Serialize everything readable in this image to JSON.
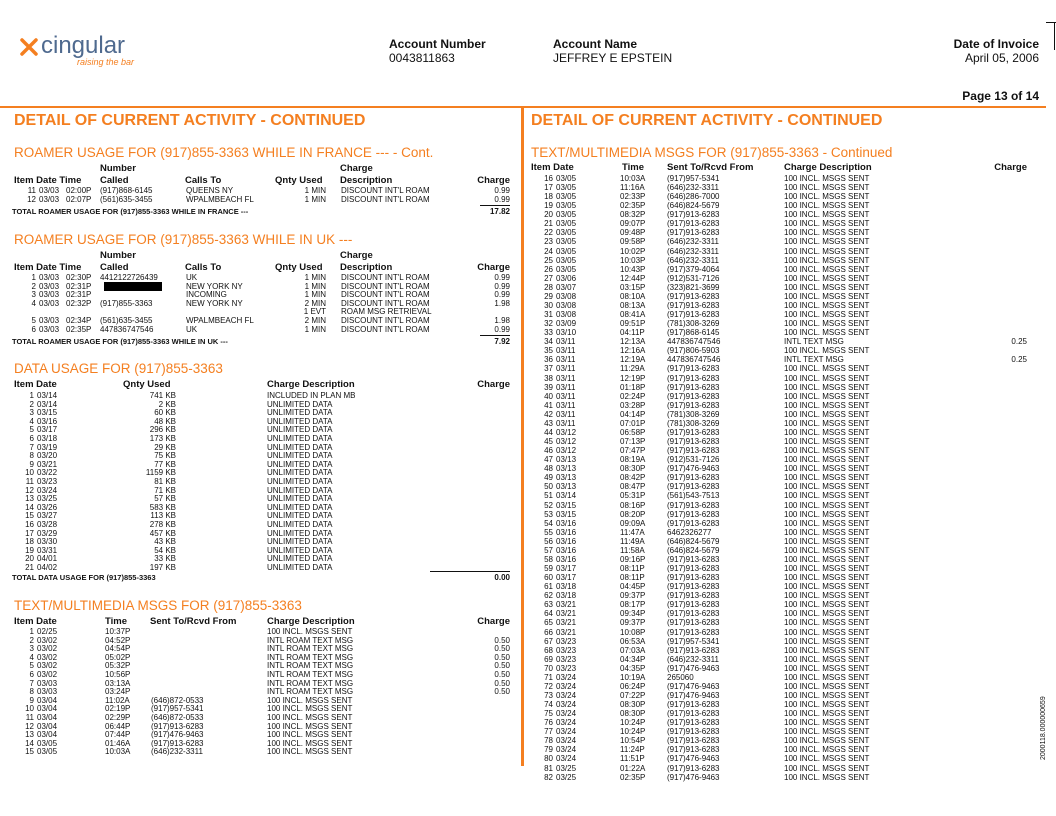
{
  "header": {
    "logo": "cingular",
    "tagline": "raising the bar",
    "account_number_label": "Account Number",
    "account_number": "0043811863",
    "account_name_label": "Account Name",
    "account_name": "JEFFREY E EPSTEIN",
    "invoice_date_label": "Date of Invoice",
    "invoice_date": "April 05, 2006",
    "page": "Page 13 of 14"
  },
  "left": {
    "title": "DETAIL OF CURRENT ACTIVITY - CONTINUED",
    "roamer_france": {
      "heading": "ROAMER USAGE FOR (917)855-3363 WHILE IN FRANCE --- - Cont.",
      "columns_top": [
        "Number",
        "Charge"
      ],
      "columns": [
        "Item Date Time",
        "Called",
        "Calls To",
        "Qnty Used",
        "Description",
        "Charge"
      ],
      "rows": [
        [
          "11",
          "03/03",
          "02:00P",
          "(917)868-6145",
          "QUEENS NY",
          "1 MIN",
          "DISCOUNT INT'L ROAM",
          "0.99"
        ],
        [
          "12",
          "03/03",
          "02:07P",
          "(561)635-3455",
          "WPALMBEACH FL",
          "1 MIN",
          "DISCOUNT INT'L ROAM",
          "0.99"
        ]
      ],
      "total_label": "TOTAL ROAMER USAGE FOR (917)855-3363 WHILE IN FRANCE ---",
      "total": "17.82"
    },
    "roamer_uk": {
      "heading": "ROAMER USAGE FOR (917)855-3363 WHILE IN UK ---",
      "columns_top": [
        "Number",
        "Charge"
      ],
      "columns": [
        "Item Date Time",
        "Called",
        "Calls To",
        "Qnty Used",
        "Description",
        "Charge"
      ],
      "rows": [
        [
          "1",
          "03/03",
          "02:30P",
          "4412122726439",
          "UK",
          "1 MIN",
          "DISCOUNT INT'L ROAM",
          "0.99"
        ],
        [
          "2",
          "03/03",
          "02:31P",
          null,
          "NEW YORK NY",
          "1 MIN",
          "DISCOUNT INT'L ROAM",
          "0.99"
        ],
        [
          "3",
          "03/03",
          "02:31P",
          null,
          "INCOMING",
          "1 MIN",
          "DISCOUNT INT'L ROAM",
          "0.99"
        ],
        [
          "4",
          "03/03",
          "02:32P",
          "(917)855-3363",
          "NEW YORK NY",
          "2 MIN",
          "DISCOUNT INT'L ROAM",
          "1.98"
        ],
        [
          null,
          null,
          null,
          null,
          null,
          "1 EVT",
          "ROAM MSG RETRIEVAL",
          null
        ],
        [
          "5",
          "03/03",
          "02:34P",
          "(561)635-3455",
          "WPALMBEACH FL",
          "2 MIN",
          "DISCOUNT INT'L ROAM",
          "1.98"
        ],
        [
          "6",
          "03/03",
          "02:35P",
          "447836747546",
          "UK",
          "1 MIN",
          "DISCOUNT INT'L ROAM",
          "0.99"
        ]
      ],
      "total_label": "TOTAL ROAMER USAGE FOR (917)855-3363 WHILE IN UK ---",
      "total": "7.92"
    },
    "data_usage": {
      "heading": "DATA USAGE FOR (917)855-3363",
      "columns": [
        "Item Date",
        "Qnty Used",
        "Charge Description",
        "Charge"
      ],
      "rows": [
        [
          "1",
          "03/14",
          "741 KB",
          "INCLUDED IN PLAN MB"
        ],
        [
          "2",
          "03/14",
          "2 KB",
          "UNLIMITED DATA"
        ],
        [
          "3",
          "03/15",
          "60 KB",
          "UNLIMITED DATA"
        ],
        [
          "4",
          "03/16",
          "48 KB",
          "UNLIMITED DATA"
        ],
        [
          "5",
          "03/17",
          "296 KB",
          "UNLIMITED DATA"
        ],
        [
          "6",
          "03/18",
          "173 KB",
          "UNLIMITED DATA"
        ],
        [
          "7",
          "03/19",
          "29 KB",
          "UNLIMITED DATA"
        ],
        [
          "8",
          "03/20",
          "75 KB",
          "UNLIMITED DATA"
        ],
        [
          "9",
          "03/21",
          "77 KB",
          "UNLIMITED DATA"
        ],
        [
          "10",
          "03/22",
          "1159 KB",
          "UNLIMITED DATA"
        ],
        [
          "11",
          "03/23",
          "81 KB",
          "UNLIMITED DATA"
        ],
        [
          "12",
          "03/24",
          "71 KB",
          "UNLIMITED DATA"
        ],
        [
          "13",
          "03/25",
          "57 KB",
          "UNLIMITED DATA"
        ],
        [
          "14",
          "03/26",
          "583 KB",
          "UNLIMITED DATA"
        ],
        [
          "15",
          "03/27",
          "113 KB",
          "UNLIMITED DATA"
        ],
        [
          "16",
          "03/28",
          "278 KB",
          "UNLIMITED DATA"
        ],
        [
          "17",
          "03/29",
          "457 KB",
          "UNLIMITED DATA"
        ],
        [
          "18",
          "03/30",
          "43 KB",
          "UNLIMITED DATA"
        ],
        [
          "19",
          "03/31",
          "54 KB",
          "UNLIMITED DATA"
        ],
        [
          "20",
          "04/01",
          "33 KB",
          "UNLIMITED DATA"
        ],
        [
          "21",
          "04/02",
          "197 KB",
          "UNLIMITED DATA"
        ]
      ],
      "total_label": "TOTAL DATA USAGE FOR (917)855-3363",
      "total": "0.00"
    },
    "text_msgs": {
      "heading": "TEXT/MULTIMEDIA MSGS FOR (917)855-3363",
      "columns": [
        "Item Date",
        "Time",
        "Sent To/Rcvd From",
        "Charge Description",
        "Charge"
      ],
      "rows": [
        [
          "1",
          "02/25",
          "10:37P",
          null,
          "100 INCL. MSGS SENT",
          null
        ],
        [
          "2",
          "03/02",
          "04:52P",
          null,
          "INTL ROAM TEXT MSG",
          "0.50"
        ],
        [
          "3",
          "03/02",
          "04:54P",
          null,
          "INTL ROAM TEXT MSG",
          "0.50"
        ],
        [
          "4",
          "03/02",
          "05:02P",
          null,
          "INTL ROAM TEXT MSG",
          "0.50"
        ],
        [
          "5",
          "03/02",
          "05:32P",
          null,
          "INTL ROAM TEXT MSG",
          "0.50"
        ],
        [
          "6",
          "03/02",
          "10:56P",
          null,
          "INTL ROAM TEXT MSG",
          "0.50"
        ],
        [
          "7",
          "03/03",
          "03:13A",
          null,
          "INTL ROAM TEXT MSG",
          "0.50"
        ],
        [
          "8",
          "03/03",
          "03:24P",
          null,
          "INTL ROAM TEXT MSG",
          "0.50"
        ],
        [
          "9",
          "03/04",
          "11:02A",
          "(646)872-0533",
          "100 INCL. MSGS SENT",
          null
        ],
        [
          "10",
          "03/04",
          "02:19P",
          "(917)957-5341",
          "100 INCL. MSGS SENT",
          null
        ],
        [
          "11",
          "03/04",
          "02:29P",
          "(646)872-0533",
          "100 INCL. MSGS SENT",
          null
        ],
        [
          "12",
          "03/04",
          "06:44P",
          "(917)913-6283",
          "100 INCL. MSGS SENT",
          null
        ],
        [
          "13",
          "03/04",
          "07:44P",
          "(917)476-9463",
          "100 INCL. MSGS SENT",
          null
        ],
        [
          "14",
          "03/05",
          "01:46A",
          "(917)913-6283",
          "100 INCL. MSGS SENT",
          null
        ],
        [
          "15",
          "03/05",
          "10:03A",
          "(646)232-3311",
          "100 INCL. MSGS SENT",
          null
        ]
      ]
    }
  },
  "right": {
    "title": "DETAIL OF CURRENT ACTIVITY - CONTINUED",
    "text_msgs": {
      "heading": "TEXT/MULTIMEDIA MSGS FOR (917)855-3363 - Continued",
      "columns": [
        "Item Date",
        "Time",
        "Sent To/Rcvd From",
        "Charge Description",
        "Charge"
      ],
      "rows": [
        [
          "16",
          "03/05",
          "10:03A",
          "(917)957-5341",
          "100 INCL. MSGS SENT",
          null
        ],
        [
          "17",
          "03/05",
          "11:16A",
          "(646)232-3311",
          "100 INCL. MSGS SENT",
          null
        ],
        [
          "18",
          "03/05",
          "02:33P",
          "(646)286-7000",
          "100 INCL. MSGS SENT",
          null
        ],
        [
          "19",
          "03/05",
          "02:35P",
          "(646)824-5679",
          "100 INCL. MSGS SENT",
          null
        ],
        [
          "20",
          "03/05",
          "08:32P",
          "(917)913-6283",
          "100 INCL. MSGS SENT",
          null
        ],
        [
          "21",
          "03/05",
          "09:07P",
          "(917)913-6283",
          "100 INCL. MSGS SENT",
          null
        ],
        [
          "22",
          "03/05",
          "09:48P",
          "(917)913-6283",
          "100 INCL. MSGS SENT",
          null
        ],
        [
          "23",
          "03/05",
          "09:58P",
          "(646)232-3311",
          "100 INCL. MSGS SENT",
          null
        ],
        [
          "24",
          "03/05",
          "10:02P",
          "(646)232-3311",
          "100 INCL. MSGS SENT",
          null
        ],
        [
          "25",
          "03/05",
          "10:03P",
          "(646)232-3311",
          "100 INCL. MSGS SENT",
          null
        ],
        [
          "26",
          "03/05",
          "10:43P",
          "(917)379-4064",
          "100 INCL. MSGS SENT",
          null
        ],
        [
          "27",
          "03/06",
          "12:44P",
          "(912)531-7126",
          "100 INCL. MSGS SENT",
          null
        ],
        [
          "28",
          "03/07",
          "03:15P",
          "(323)821-3699",
          "100 INCL. MSGS SENT",
          null
        ],
        [
          "29",
          "03/08",
          "08:10A",
          "(917)913-6283",
          "100 INCL. MSGS SENT",
          null
        ],
        [
          "30",
          "03/08",
          "08:13A",
          "(917)913-6283",
          "100 INCL. MSGS SENT",
          null
        ],
        [
          "31",
          "03/08",
          "08:41A",
          "(917)913-6283",
          "100 INCL. MSGS SENT",
          null
        ],
        [
          "32",
          "03/09",
          "09:51P",
          "(781)308-3269",
          "100 INCL. MSGS SENT",
          null
        ],
        [
          "33",
          "03/10",
          "04:11P",
          "(917)868-6145",
          "100 INCL. MSGS SENT",
          null
        ],
        [
          "34",
          "03/11",
          "12:13A",
          "447836747546",
          "INTL TEXT MSG",
          "0.25"
        ],
        [
          "35",
          "03/11",
          "12:16A",
          "(917)806-5903",
          "100 INCL. MSGS SENT",
          null
        ],
        [
          "36",
          "03/11",
          "12:19A",
          "447836747546",
          "INTL TEXT MSG",
          "0.25"
        ],
        [
          "37",
          "03/11",
          "11:29A",
          "(917)913-6283",
          "100 INCL. MSGS SENT",
          null
        ],
        [
          "38",
          "03/11",
          "12:19P",
          "(917)913-6283",
          "100 INCL. MSGS SENT",
          null
        ],
        [
          "39",
          "03/11",
          "01:18P",
          "(917)913-6283",
          "100 INCL. MSGS SENT",
          null
        ],
        [
          "40",
          "03/11",
          "02:24P",
          "(917)913-6283",
          "100 INCL. MSGS SENT",
          null
        ],
        [
          "41",
          "03/11",
          "03:28P",
          "(917)913-6283",
          "100 INCL. MSGS SENT",
          null
        ],
        [
          "42",
          "03/11",
          "04:14P",
          "(781)308-3269",
          "100 INCL. MSGS SENT",
          null
        ],
        [
          "43",
          "03/11",
          "07:01P",
          "(781)308-3269",
          "100 INCL. MSGS SENT",
          null
        ],
        [
          "44",
          "03/12",
          "06:58P",
          "(917)913-6283",
          "100 INCL. MSGS SENT",
          null
        ],
        [
          "45",
          "03/12",
          "07:13P",
          "(917)913-6283",
          "100 INCL. MSGS SENT",
          null
        ],
        [
          "46",
          "03/12",
          "07:47P",
          "(917)913-6283",
          "100 INCL. MSGS SENT",
          null
        ],
        [
          "47",
          "03/13",
          "08:19A",
          "(912)531-7126",
          "100 INCL. MSGS SENT",
          null
        ],
        [
          "48",
          "03/13",
          "08:30P",
          "(917)476-9463",
          "100 INCL. MSGS SENT",
          null
        ],
        [
          "49",
          "03/13",
          "08:42P",
          "(917)913-6283",
          "100 INCL. MSGS SENT",
          null
        ],
        [
          "50",
          "03/13",
          "08:47P",
          "(917)913-6283",
          "100 INCL. MSGS SENT",
          null
        ],
        [
          "51",
          "03/14",
          "05:31P",
          "(561)543-7513",
          "100 INCL. MSGS SENT",
          null
        ],
        [
          "52",
          "03/15",
          "08:16P",
          "(917)913-6283",
          "100 INCL. MSGS SENT",
          null
        ],
        [
          "53",
          "03/15",
          "08:20P",
          "(917)913-6283",
          "100 INCL. MSGS SENT",
          null
        ],
        [
          "54",
          "03/16",
          "09:09A",
          "(917)913-6283",
          "100 INCL. MSGS SENT",
          null
        ],
        [
          "55",
          "03/16",
          "11:47A",
          "6462326277",
          "100 INCL. MSGS SENT",
          null
        ],
        [
          "56",
          "03/16",
          "11:49A",
          "(646)824-5679",
          "100 INCL. MSGS SENT",
          null
        ],
        [
          "57",
          "03/16",
          "11:58A",
          "(646)824-5679",
          "100 INCL. MSGS SENT",
          null
        ],
        [
          "58",
          "03/16",
          "09:16P",
          "(917)913-6283",
          "100 INCL. MSGS SENT",
          null
        ],
        [
          "59",
          "03/17",
          "08:11P",
          "(917)913-6283",
          "100 INCL. MSGS SENT",
          null
        ],
        [
          "60",
          "03/17",
          "08:11P",
          "(917)913-6283",
          "100 INCL. MSGS SENT",
          null
        ],
        [
          "61",
          "03/18",
          "04:45P",
          "(917)913-6283",
          "100 INCL. MSGS SENT",
          null
        ],
        [
          "62",
          "03/18",
          "09:37P",
          "(917)913-6283",
          "100 INCL. MSGS SENT",
          null
        ],
        [
          "63",
          "03/21",
          "08:17P",
          "(917)913-6283",
          "100 INCL. MSGS SENT",
          null
        ],
        [
          "64",
          "03/21",
          "09:34P",
          "(917)913-6283",
          "100 INCL. MSGS SENT",
          null
        ],
        [
          "65",
          "03/21",
          "09:37P",
          "(917)913-6283",
          "100 INCL. MSGS SENT",
          null
        ],
        [
          "66",
          "03/21",
          "10:08P",
          "(917)913-6283",
          "100 INCL. MSGS SENT",
          null
        ],
        [
          "67",
          "03/23",
          "06:53A",
          "(917)957-5341",
          "100 INCL. MSGS SENT",
          null
        ],
        [
          "68",
          "03/23",
          "07:03A",
          "(917)913-6283",
          "100 INCL. MSGS SENT",
          null
        ],
        [
          "69",
          "03/23",
          "04:34P",
          "(646)232-3311",
          "100 INCL. MSGS SENT",
          null
        ],
        [
          "70",
          "03/23",
          "04:35P",
          "(917)476-9463",
          "100 INCL. MSGS SENT",
          null
        ],
        [
          "71",
          "03/24",
          "10:19A",
          "265060",
          "100 INCL. MSGS SENT",
          null
        ],
        [
          "72",
          "03/24",
          "06:24P",
          "(917)476-9463",
          "100 INCL. MSGS SENT",
          null
        ],
        [
          "73",
          "03/24",
          "07:22P",
          "(917)476-9463",
          "100 INCL. MSGS SENT",
          null
        ],
        [
          "74",
          "03/24",
          "08:30P",
          "(917)913-6283",
          "100 INCL. MSGS SENT",
          null
        ],
        [
          "75",
          "03/24",
          "08:30P",
          "(917)913-6283",
          "100 INCL. MSGS SENT",
          null
        ],
        [
          "76",
          "03/24",
          "10:24P",
          "(917)913-6283",
          "100 INCL. MSGS SENT",
          null
        ],
        [
          "77",
          "03/24",
          "10:24P",
          "(917)913-6283",
          "100 INCL. MSGS SENT",
          null
        ],
        [
          "78",
          "03/24",
          "10:54P",
          "(917)913-6283",
          "100 INCL. MSGS SENT",
          null
        ],
        [
          "79",
          "03/24",
          "11:24P",
          "(917)913-6283",
          "100 INCL. MSGS SENT",
          null
        ],
        [
          "80",
          "03/24",
          "11:51P",
          "(917)476-9463",
          "100 INCL. MSGS SENT",
          null
        ],
        [
          "81",
          "03/25",
          "01:22A",
          "(917)913-6283",
          "100 INCL. MSGS SENT",
          null
        ],
        [
          "82",
          "03/25",
          "02:35P",
          "(917)476-9463",
          "100 INCL. MSGS SENT",
          null
        ]
      ]
    }
  },
  "footer_code": "2000118.000000659"
}
